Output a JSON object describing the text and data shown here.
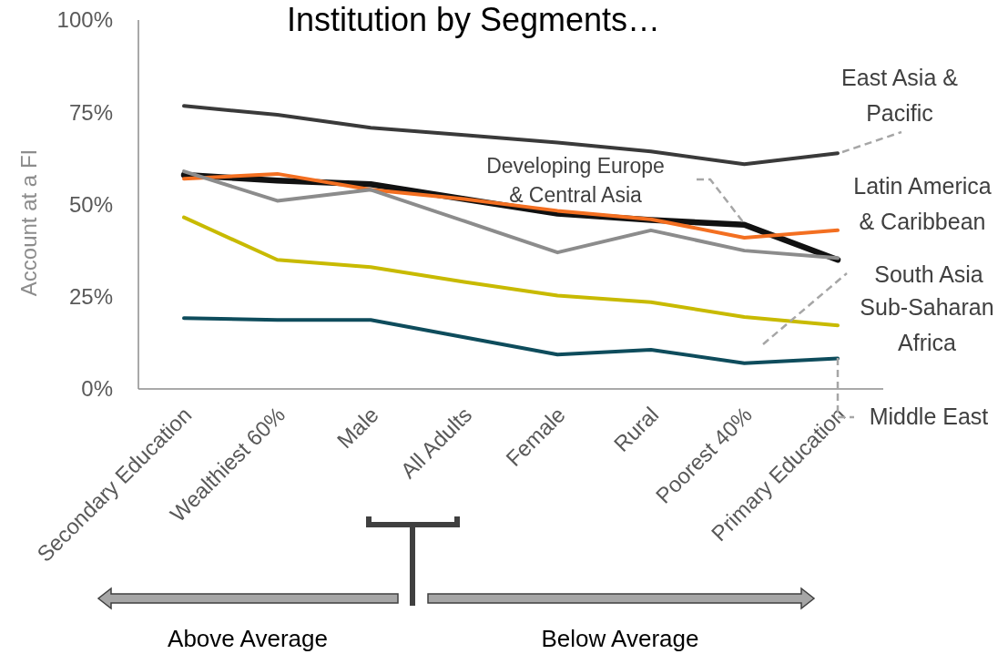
{
  "chart_data": {
    "type": "line",
    "title": "Institution by Segments…",
    "ylabel": "Account at a FI",
    "categories": [
      "Secondary Education",
      "Wealthiest 60%",
      "Male",
      "All Adults",
      "Female",
      "Rural",
      "Poorest 40%",
      "Primary Education"
    ],
    "series": [
      {
        "name": "East Asia & Pacific",
        "color": "#3a3a3a",
        "values": [
          76.7,
          74.3,
          70.8,
          68.8,
          66.8,
          64.4,
          60.9,
          63.9
        ]
      },
      {
        "name": "Developing Europe & Central Asia",
        "color": "#111111",
        "values": [
          58,
          56.5,
          55.5,
          51.5,
          47.5,
          45.8,
          44.5,
          35
        ]
      },
      {
        "name": "Latin America & Caribbean",
        "color": "#f36f21",
        "values": [
          57,
          58.3,
          54,
          51.5,
          48.3,
          46,
          41,
          43
        ]
      },
      {
        "name": "South Asia",
        "color": "#8c8c8c",
        "values": [
          59,
          51,
          54,
          45.5,
          37,
          43,
          37.5,
          35.5
        ]
      },
      {
        "name": "Sub-Saharan Africa",
        "color": "#c8ba00",
        "values": [
          46.5,
          35,
          33,
          29,
          25.3,
          23.5,
          19.5,
          17.2
        ]
      },
      {
        "name": "Middle East",
        "color": "#0e4c5c",
        "values": [
          19.2,
          18.7,
          18.7,
          14,
          9.3,
          10.6,
          7,
          8.3
        ]
      }
    ],
    "ylim": [
      0,
      100
    ],
    "yticks": [
      {
        "value": 0,
        "label": "0%"
      },
      {
        "value": 25,
        "label": "25%"
      },
      {
        "value": 50,
        "label": "50%"
      },
      {
        "value": 75,
        "label": "75%"
      },
      {
        "value": 100,
        "label": "100%"
      }
    ],
    "grid": false,
    "marker": "none",
    "line_style": "solid",
    "annotations": [
      "Above Average",
      "Below Average"
    ]
  }
}
